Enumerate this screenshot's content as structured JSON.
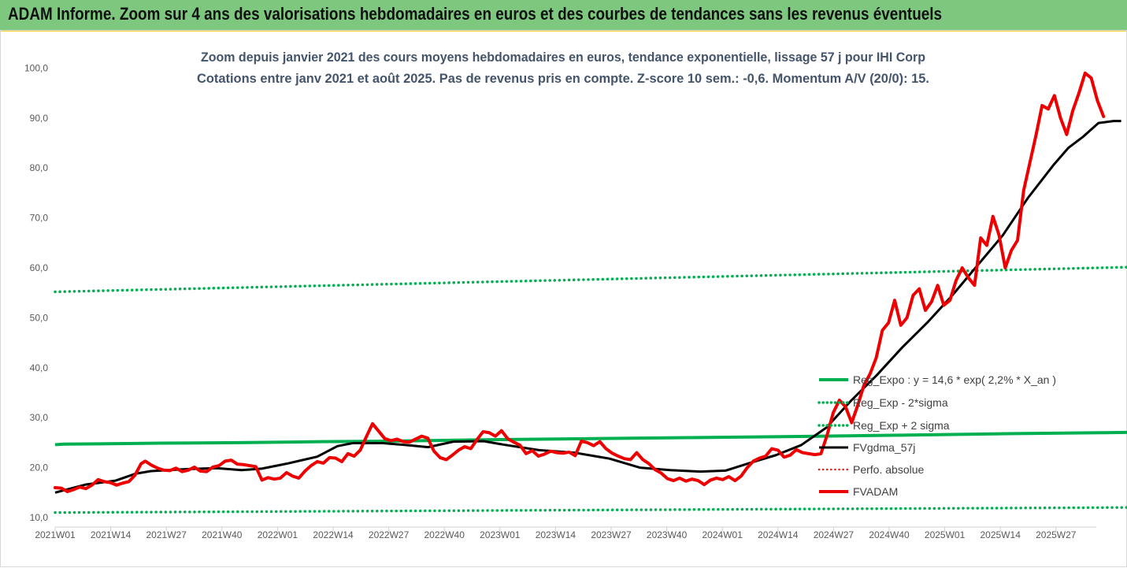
{
  "banner": {
    "text": "ADAM Informe. Zoom sur 4 ans des valorisations hebdomadaires en euros et des courbes de tendances sans les revenus éventuels",
    "background": "#7dc77f",
    "underline": "#f2d024"
  },
  "chart_data": {
    "type": "line",
    "title": "Zoom depuis janvier 2021 des cours moyens hebdomadaires en euros, tendance exponentielle, lissage 57 j pour IHI Corp",
    "subtitle": "Cotations entre janv 2021 et août 2025.  Pas de revenus pris en compte. Z-score 10 sem.: -0,6. Momentum A/V (20/0): 15.",
    "x_tick_labels": [
      "2021W01",
      "2021W14",
      "2021W27",
      "2021W40",
      "2022W01",
      "2022W14",
      "2022W27",
      "2022W40",
      "2023W01",
      "2023W14",
      "2023W27",
      "2023W40",
      "2024W01",
      "2024W14",
      "2024W27",
      "2024W40",
      "2025W01",
      "2025W14",
      "2025W27"
    ],
    "x_range": [
      "2021W01",
      "2025W34"
    ],
    "ylim": [
      10,
      100
    ],
    "y_tick_values": [
      10,
      20,
      30,
      40,
      50,
      60,
      70,
      80,
      90,
      100
    ],
    "y_tick_labels": [
      "10,0",
      "20,0",
      "30,0",
      "40,0",
      "50,0",
      "60,0",
      "70,0",
      "80,0",
      "90,0",
      "100,0"
    ],
    "grid": false,
    "legend_position": "right-center",
    "series": [
      {
        "name": "Reg_Expo : y = 14,6 * exp( 2,2% *  X_an )",
        "color": "#00b050",
        "style": "solid-thick",
        "step_points": [
          [
            0,
            24.6
          ],
          [
            2,
            24.7
          ],
          [
            25,
            24.9
          ],
          [
            43,
            25.0
          ],
          [
            62,
            25.2
          ],
          [
            78,
            25.3
          ],
          [
            102,
            25.6
          ],
          [
            124,
            25.8
          ],
          [
            148,
            26.0
          ],
          [
            170,
            26.2
          ],
          [
            198,
            26.5
          ],
          [
            222,
            26.8
          ],
          [
            245,
            27.0
          ],
          [
            255,
            27.1
          ],
          [
            270,
            27.2
          ],
          [
            294,
            27.3
          ]
        ]
      },
      {
        "name": "Reg_Exp - 2*sigma",
        "color": "#00b050",
        "style": "dotted",
        "x": [
          0,
          294
        ],
        "values": [
          11.0,
          12.2
        ]
      },
      {
        "name": "Reg_Exp + 2 sigma",
        "color": "#00b050",
        "style": "dotted",
        "x": [
          0,
          294
        ],
        "values": [
          55.2,
          61.0
        ]
      },
      {
        "name": "FVgdma_57j",
        "color": "#000000",
        "style": "solid",
        "points": [
          [
            0,
            15.0
          ],
          [
            12,
            16.6
          ],
          [
            24,
            17.4
          ],
          [
            32,
            18.8
          ],
          [
            38,
            19.3
          ],
          [
            52,
            19.7
          ],
          [
            64,
            19.9
          ],
          [
            74,
            19.5
          ],
          [
            82,
            19.8
          ],
          [
            92,
            20.8
          ],
          [
            104,
            22.2
          ],
          [
            112,
            24.3
          ],
          [
            118,
            24.9
          ],
          [
            130,
            24.9
          ],
          [
            140,
            24.5
          ],
          [
            148,
            24.1
          ],
          [
            158,
            25.2
          ],
          [
            170,
            25.3
          ],
          [
            178,
            24.6
          ],
          [
            192,
            23.5
          ],
          [
            206,
            23.0
          ],
          [
            220,
            21.8
          ],
          [
            232,
            20.0
          ],
          [
            244,
            19.5
          ],
          [
            256,
            19.2
          ],
          [
            266,
            19.4
          ],
          [
            276,
            21.0
          ],
          [
            286,
            22.5
          ],
          [
            296,
            24.5
          ],
          [
            306,
            28.0
          ],
          [
            316,
            33.5
          ],
          [
            326,
            38.5
          ],
          [
            336,
            44.0
          ],
          [
            346,
            49.0
          ],
          [
            356,
            54.5
          ],
          [
            366,
            60.5
          ],
          [
            376,
            66.5
          ],
          [
            386,
            74.0
          ],
          [
            396,
            80.5
          ],
          [
            402,
            84.0
          ],
          [
            408,
            86.3
          ],
          [
            414,
            89.0
          ],
          [
            420,
            89.4
          ],
          [
            423,
            89.4
          ]
        ]
      },
      {
        "name": "Perfo. absolue",
        "color": "#e02020",
        "style": "dotted",
        "points": []
      },
      {
        "name": "FVADAM",
        "color": "#ee0000",
        "style": "solid-thick",
        "points": [
          [
            0,
            16.0
          ],
          [
            3,
            15.9
          ],
          [
            6,
            15.2
          ],
          [
            9,
            15.6
          ],
          [
            12,
            16.1
          ],
          [
            15,
            15.8
          ],
          [
            18,
            16.5
          ],
          [
            21,
            17.6
          ],
          [
            24,
            17.2
          ],
          [
            27,
            17.0
          ],
          [
            30,
            16.5
          ],
          [
            33,
            16.9
          ],
          [
            36,
            17.2
          ],
          [
            39,
            18.5
          ],
          [
            42,
            20.8
          ],
          [
            44,
            21.3
          ],
          [
            47,
            20.5
          ],
          [
            50,
            19.9
          ],
          [
            53,
            19.5
          ],
          [
            56,
            19.4
          ],
          [
            59,
            19.9
          ],
          [
            62,
            19.2
          ],
          [
            65,
            19.5
          ],
          [
            68,
            20.1
          ],
          [
            71,
            19.3
          ],
          [
            74,
            19.2
          ],
          [
            77,
            20.1
          ],
          [
            80,
            20.4
          ],
          [
            83,
            21.3
          ],
          [
            86,
            21.5
          ],
          [
            89,
            20.7
          ],
          [
            92,
            20.6
          ],
          [
            95,
            20.4
          ],
          [
            98,
            20.2
          ],
          [
            101,
            17.5
          ],
          [
            104,
            18.0
          ],
          [
            107,
            17.7
          ],
          [
            110,
            17.9
          ],
          [
            113,
            19.0
          ],
          [
            116,
            18.3
          ],
          [
            119,
            17.9
          ],
          [
            122,
            19.3
          ],
          [
            125,
            20.4
          ],
          [
            128,
            21.2
          ],
          [
            131,
            20.9
          ],
          [
            134,
            22.0
          ],
          [
            137,
            21.9
          ],
          [
            140,
            21.2
          ],
          [
            143,
            22.8
          ],
          [
            146,
            22.3
          ],
          [
            149,
            23.5
          ],
          [
            152,
            26.2
          ],
          [
            155,
            28.8
          ],
          [
            158,
            27.3
          ],
          [
            161,
            25.8
          ],
          [
            164,
            25.4
          ],
          [
            167,
            25.7
          ],
          [
            170,
            25.2
          ],
          [
            173,
            25.1
          ],
          [
            176,
            25.7
          ],
          [
            179,
            26.3
          ],
          [
            182,
            25.9
          ],
          [
            185,
            23.3
          ],
          [
            188,
            22.0
          ],
          [
            191,
            21.6
          ],
          [
            194,
            22.5
          ],
          [
            197,
            23.5
          ],
          [
            200,
            24.2
          ],
          [
            203,
            23.8
          ],
          [
            206,
            25.6
          ],
          [
            209,
            27.2
          ],
          [
            212,
            27.0
          ],
          [
            215,
            26.3
          ],
          [
            218,
            27.4
          ],
          [
            221,
            25.8
          ],
          [
            224,
            25.1
          ],
          [
            227,
            24.5
          ],
          [
            230,
            22.8
          ],
          [
            233,
            23.4
          ],
          [
            236,
            22.3
          ],
          [
            239,
            22.7
          ],
          [
            242,
            23.3
          ],
          [
            245,
            23.0
          ],
          [
            248,
            22.9
          ],
          [
            251,
            23.1
          ],
          [
            254,
            22.4
          ],
          [
            257,
            25.3
          ],
          [
            260,
            25.0
          ],
          [
            263,
            24.4
          ],
          [
            266,
            25.2
          ],
          [
            269,
            23.8
          ],
          [
            272,
            22.9
          ],
          [
            275,
            22.3
          ],
          [
            278,
            21.8
          ],
          [
            281,
            21.6
          ],
          [
            284,
            23.0
          ],
          [
            287,
            21.6
          ],
          [
            290,
            20.8
          ],
          [
            293,
            19.6
          ],
          [
            296,
            18.9
          ],
          [
            299,
            17.8
          ],
          [
            302,
            17.4
          ],
          [
            305,
            17.9
          ],
          [
            308,
            17.3
          ],
          [
            311,
            17.7
          ],
          [
            314,
            17.4
          ],
          [
            317,
            16.6
          ],
          [
            320,
            17.5
          ],
          [
            323,
            17.9
          ],
          [
            326,
            17.6
          ],
          [
            329,
            18.2
          ],
          [
            332,
            17.4
          ],
          [
            335,
            18.3
          ],
          [
            338,
            20.0
          ],
          [
            341,
            21.3
          ],
          [
            344,
            21.9
          ],
          [
            347,
            22.3
          ],
          [
            350,
            23.8
          ],
          [
            353,
            23.5
          ],
          [
            356,
            22.1
          ],
          [
            359,
            22.5
          ],
          [
            362,
            23.6
          ],
          [
            365,
            23.0
          ],
          [
            368,
            22.8
          ],
          [
            371,
            22.6
          ],
          [
            374,
            22.8
          ],
          [
            377,
            26.5
          ],
          [
            380,
            31.0
          ],
          [
            383,
            33.5
          ],
          [
            386,
            32.2
          ],
          [
            389,
            29.0
          ],
          [
            392,
            32.5
          ],
          [
            395,
            36.5
          ],
          [
            398,
            38.8
          ],
          [
            401,
            42.0
          ],
          [
            404,
            47.5
          ],
          [
            407,
            49.0
          ],
          [
            410,
            53.5
          ],
          [
            413,
            48.5
          ],
          [
            416,
            50.0
          ],
          [
            419,
            54.5
          ],
          [
            422,
            55.8
          ],
          [
            425,
            51.5
          ],
          [
            428,
            53.2
          ],
          [
            431,
            56.5
          ],
          [
            434,
            52.5
          ],
          [
            437,
            53.5
          ],
          [
            440,
            57.5
          ],
          [
            443,
            60.0
          ],
          [
            446,
            58.0
          ],
          [
            449,
            56.5
          ],
          [
            452,
            66.0
          ],
          [
            455,
            64.5
          ],
          [
            458,
            70.3
          ],
          [
            461,
            66.5
          ],
          [
            464,
            60.0
          ],
          [
            467,
            63.5
          ],
          [
            470,
            65.5
          ],
          [
            473,
            75.5
          ],
          [
            476,
            81.0
          ],
          [
            479,
            86.5
          ],
          [
            482,
            92.5
          ],
          [
            485,
            91.8
          ],
          [
            488,
            94.5
          ],
          [
            491,
            90.0
          ],
          [
            494,
            86.7
          ],
          [
            497,
            91.5
          ],
          [
            500,
            95.0
          ],
          [
            503,
            99.0
          ],
          [
            506,
            98.0
          ],
          [
            509,
            93.5
          ],
          [
            512,
            90.3
          ]
        ]
      }
    ]
  }
}
